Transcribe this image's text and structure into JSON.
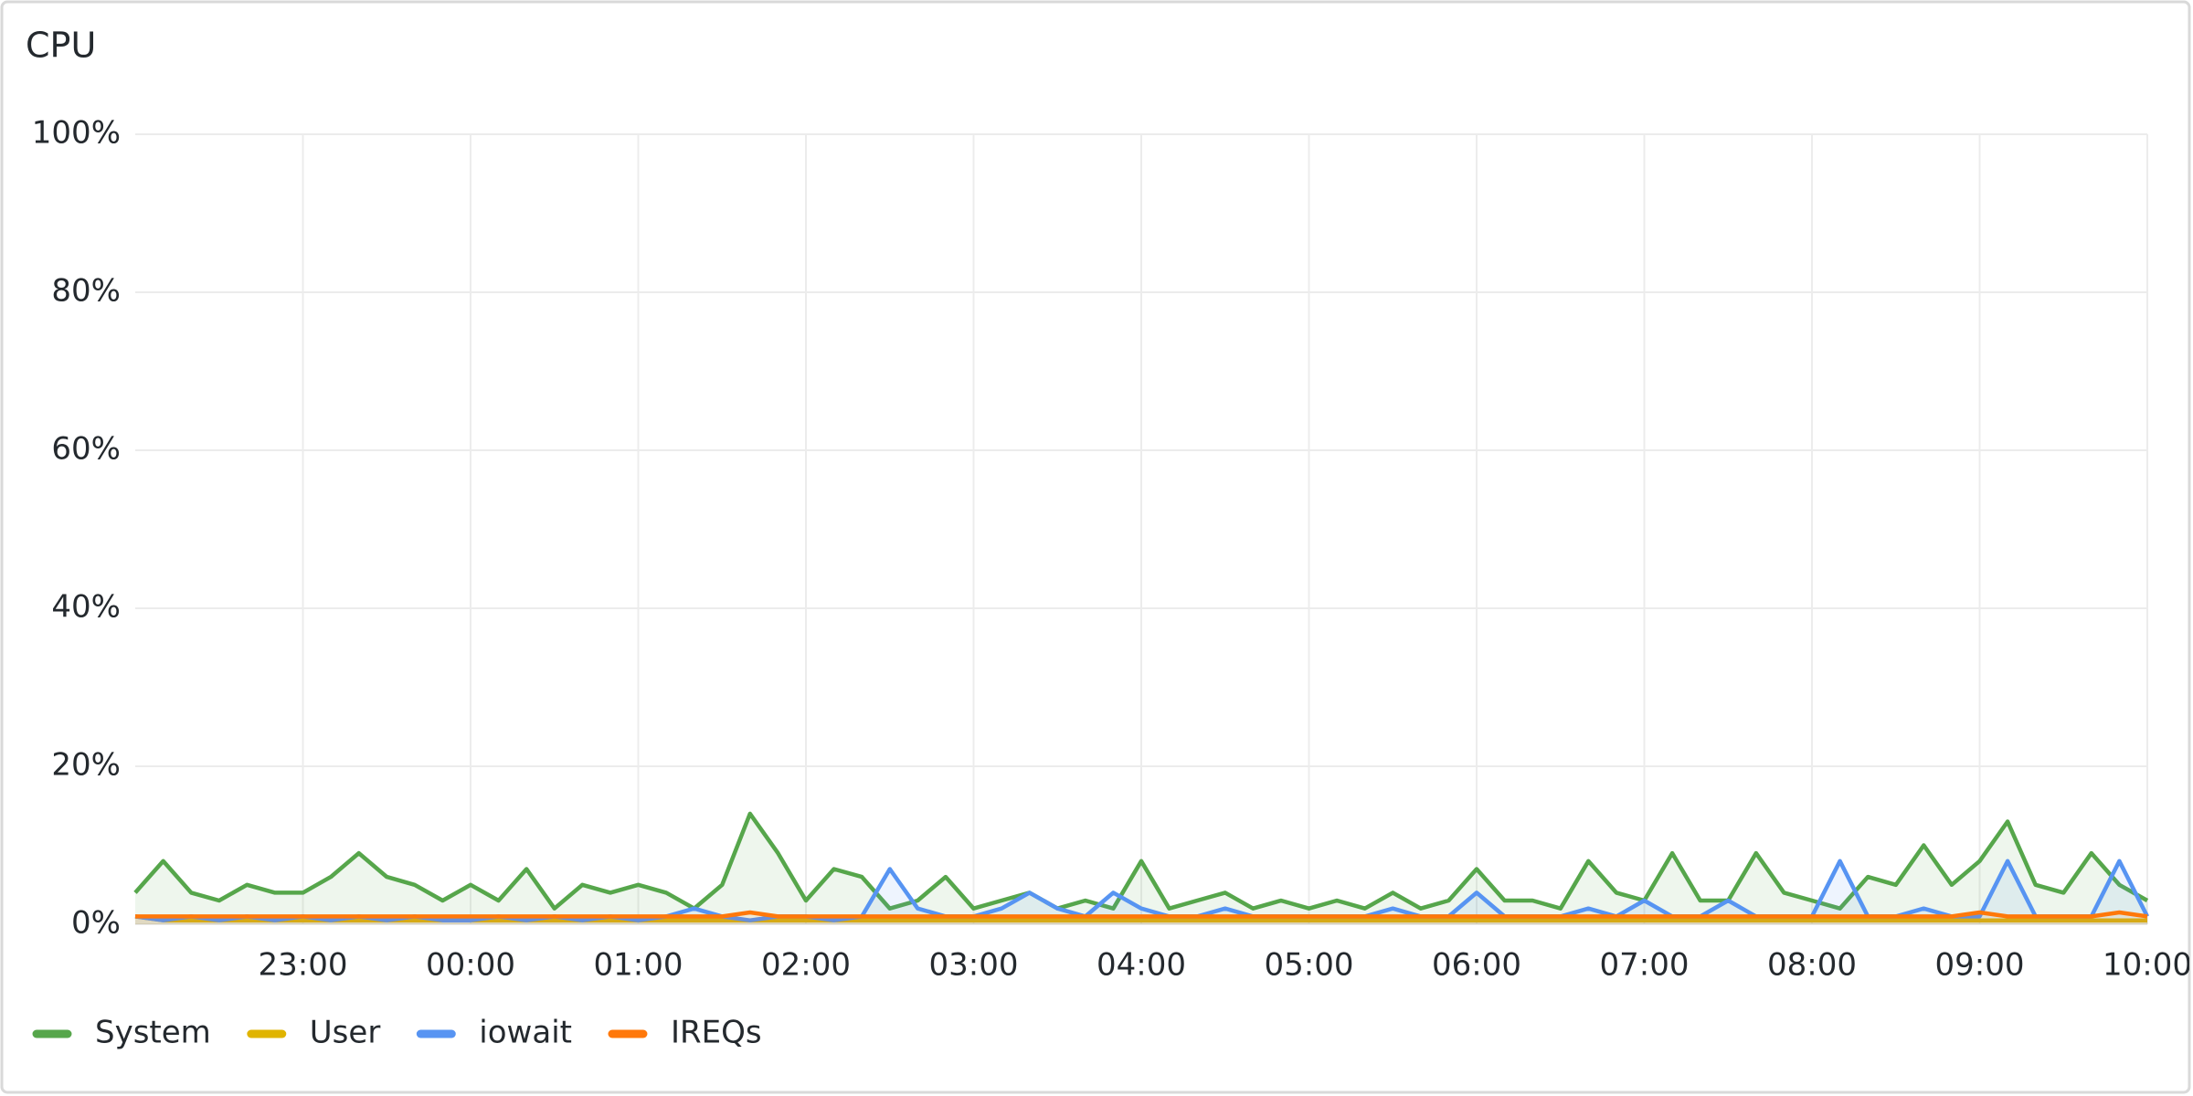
{
  "chart_data": {
    "type": "line",
    "title": "CPU",
    "x": [
      1320,
      1330,
      1340,
      1350,
      1360,
      1370,
      1380,
      1390,
      1400,
      1410,
      1420,
      1430,
      1440,
      1450,
      1460,
      1470,
      1480,
      1490,
      1500,
      1510,
      1520,
      1530,
      1540,
      1550,
      1560,
      1570,
      1580,
      1590,
      1600,
      1610,
      1620,
      1630,
      1640,
      1650,
      1660,
      1670,
      1680,
      1690,
      1700,
      1710,
      1720,
      1730,
      1740,
      1750,
      1760,
      1770,
      1780,
      1790,
      1800,
      1810,
      1820,
      1830,
      1840,
      1850,
      1860,
      1870,
      1880,
      1890,
      1900,
      1910,
      1920,
      1930,
      1940,
      1950,
      1960,
      1970,
      1980,
      1990,
      2000,
      2010,
      2020,
      2030,
      2040
    ],
    "series": [
      {
        "name": "System",
        "color": "#56a64b",
        "values": [
          4,
          8,
          4,
          3,
          5,
          4,
          4,
          6,
          9,
          6,
          5,
          3,
          5,
          3,
          7,
          2,
          5,
          4,
          5,
          4,
          2,
          5,
          14,
          9,
          3,
          7,
          6,
          2,
          3,
          6,
          2,
          3,
          4,
          2,
          3,
          2,
          8,
          2,
          3,
          4,
          2,
          3,
          2,
          3,
          2,
          4,
          2,
          3,
          7,
          3,
          3,
          2,
          8,
          4,
          3,
          9,
          3,
          3,
          9,
          4,
          3,
          2,
          6,
          5,
          10,
          5,
          8,
          13,
          5,
          4,
          9,
          5,
          3
        ]
      },
      {
        "name": "User",
        "color": "#e0b400",
        "values": [
          1,
          0.5,
          0.5,
          0.5,
          0.5,
          0.5,
          0.5,
          0.5,
          0.5,
          0.5,
          0.5,
          0.5,
          0.5,
          0.5,
          0.5,
          0.5,
          0.5,
          0.5,
          0.5,
          0.5,
          0.5,
          0.5,
          0.5,
          0.5,
          0.5,
          0.5,
          0.5,
          0.5,
          0.5,
          0.5,
          0.5,
          0.5,
          0.5,
          0.5,
          0.5,
          0.5,
          0.5,
          0.5,
          0.5,
          0.5,
          0.5,
          0.5,
          0.5,
          0.5,
          0.5,
          0.5,
          0.5,
          0.5,
          0.5,
          0.5,
          0.5,
          0.5,
          0.5,
          0.5,
          0.5,
          0.5,
          0.5,
          0.5,
          0.5,
          0.5,
          0.5,
          0.5,
          0.5,
          0.5,
          0.5,
          0.5,
          0.5,
          0.5,
          0.5,
          0.5,
          0.5,
          0.5,
          0.5
        ]
      },
      {
        "name": "iowait",
        "color": "#5794f2",
        "values": [
          1,
          0.5,
          1,
          0.5,
          1,
          0.5,
          1,
          0.5,
          1,
          0.5,
          1,
          0.5,
          0.5,
          1,
          0.5,
          1,
          0.5,
          1,
          0.5,
          1,
          2,
          1,
          0.5,
          1,
          1,
          0.5,
          1,
          7,
          2,
          1,
          1,
          2,
          4,
          2,
          1,
          4,
          2,
          1,
          1,
          2,
          1,
          1,
          1,
          1,
          1,
          2,
          1,
          1,
          4,
          1,
          1,
          1,
          2,
          1,
          3,
          1,
          1,
          3,
          1,
          1,
          1,
          8,
          1,
          1,
          2,
          1,
          1,
          8,
          1,
          1,
          1,
          8,
          1
        ]
      },
      {
        "name": "IREQs",
        "color": "#ff780a",
        "values": [
          1,
          1,
          1,
          1,
          1,
          1,
          1,
          1,
          1,
          1,
          1,
          1,
          1,
          1,
          1,
          1,
          1,
          1,
          1,
          1,
          1,
          1,
          1.5,
          1,
          1,
          1,
          1,
          1,
          1,
          1,
          1,
          1,
          1,
          1,
          1,
          1,
          1,
          1,
          1,
          1,
          1,
          1,
          1,
          1,
          1,
          1,
          1,
          1,
          1,
          1,
          1,
          1,
          1,
          1,
          1,
          1,
          1,
          1,
          1,
          1,
          1,
          1,
          1,
          1,
          1,
          1,
          1.5,
          1,
          1,
          1,
          1,
          1.5,
          1
        ]
      }
    ],
    "xlim": [
      1320,
      2040
    ],
    "xticks": [
      {
        "value": 1380,
        "label": "23:00"
      },
      {
        "value": 1440,
        "label": "00:00"
      },
      {
        "value": 1500,
        "label": "01:00"
      },
      {
        "value": 1560,
        "label": "02:00"
      },
      {
        "value": 1620,
        "label": "03:00"
      },
      {
        "value": 1680,
        "label": "04:00"
      },
      {
        "value": 1740,
        "label": "05:00"
      },
      {
        "value": 1800,
        "label": "06:00"
      },
      {
        "value": 1860,
        "label": "07:00"
      },
      {
        "value": 1920,
        "label": "08:00"
      },
      {
        "value": 1980,
        "label": "09:00"
      },
      {
        "value": 2040,
        "label": "10:00"
      }
    ],
    "ylim": [
      0,
      100
    ],
    "yticks": [
      {
        "value": 0,
        "label": "0%"
      },
      {
        "value": 20,
        "label": "20%"
      },
      {
        "value": 40,
        "label": "40%"
      },
      {
        "value": 60,
        "label": "60%"
      },
      {
        "value": 80,
        "label": "80%"
      },
      {
        "value": 100,
        "label": "100%"
      }
    ],
    "grid": true
  }
}
